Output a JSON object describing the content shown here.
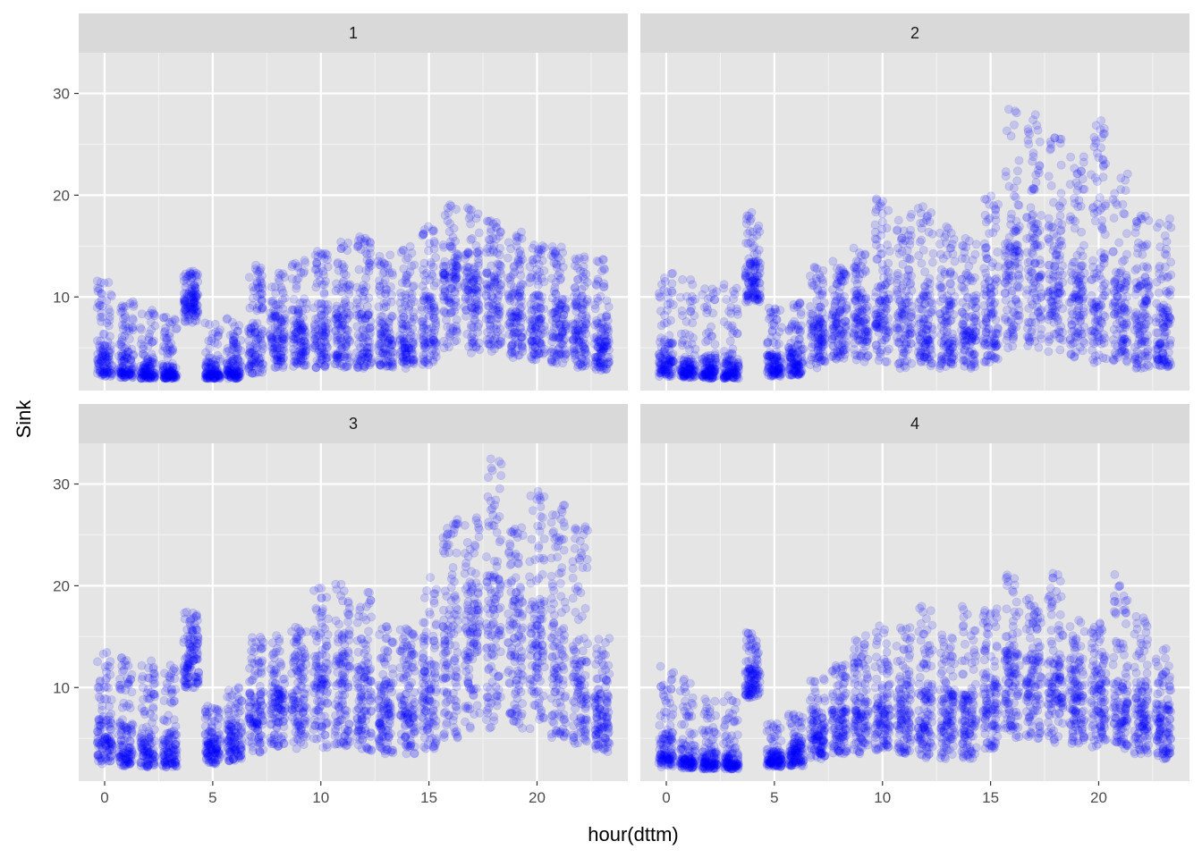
{
  "chart_data": {
    "type": "scatter",
    "layout": "facet_wrap 2x2",
    "xlabel": "hour(dttm)",
    "ylabel": "Sink",
    "xlim": [
      -1.2,
      24.2
    ],
    "ylim": [
      0.8,
      34.0
    ],
    "x_ticks": [
      0,
      5,
      10,
      15,
      20
    ],
    "y_ticks": [
      10,
      20,
      30
    ],
    "grid": true,
    "point_color": "#0000ff",
    "point_alpha": 0.14,
    "panel_background": "#e5e5e5",
    "strip_background": "#d9d9d9",
    "note": "hourly distribution summary per facet (min, lower quartile, median, upper quartile, max); x is hour of day 0-23",
    "facets": [
      {
        "label": "1",
        "hours": [
          {
            "x": 0,
            "min": 2.2,
            "q1": 2.8,
            "median": 4.0,
            "q3": 6.0,
            "max": 11.5
          },
          {
            "x": 1,
            "min": 2.1,
            "q1": 2.5,
            "median": 3.0,
            "q3": 4.5,
            "max": 9.5
          },
          {
            "x": 2,
            "min": 2.0,
            "q1": 2.3,
            "median": 2.7,
            "q3": 3.8,
            "max": 9.0
          },
          {
            "x": 3,
            "min": 2.0,
            "q1": 2.2,
            "median": 2.5,
            "q3": 3.3,
            "max": 8.0
          },
          {
            "x": 4,
            "min": 7.5,
            "q1": 8.8,
            "median": 9.6,
            "q3": 10.5,
            "max": 12.5
          },
          {
            "x": 5,
            "min": 2.0,
            "q1": 2.2,
            "median": 2.6,
            "q3": 3.5,
            "max": 7.5
          },
          {
            "x": 6,
            "min": 2.0,
            "q1": 2.3,
            "median": 2.8,
            "q3": 4.0,
            "max": 8.0
          },
          {
            "x": 7,
            "min": 2.5,
            "q1": 4.0,
            "median": 5.5,
            "q3": 7.0,
            "max": 13.0
          },
          {
            "x": 8,
            "min": 3.0,
            "q1": 5.0,
            "median": 6.5,
            "q3": 8.5,
            "max": 12.5
          },
          {
            "x": 9,
            "min": 3.0,
            "q1": 5.0,
            "median": 6.8,
            "q3": 9.0,
            "max": 13.5
          },
          {
            "x": 10,
            "min": 3.0,
            "q1": 5.0,
            "median": 7.0,
            "q3": 9.5,
            "max": 14.5
          },
          {
            "x": 11,
            "min": 3.0,
            "q1": 4.5,
            "median": 6.5,
            "q3": 9.0,
            "max": 15.5
          },
          {
            "x": 12,
            "min": 3.0,
            "q1": 4.5,
            "median": 6.5,
            "q3": 9.0,
            "max": 16.0
          },
          {
            "x": 13,
            "min": 3.0,
            "q1": 4.5,
            "median": 6.0,
            "q3": 8.5,
            "max": 14.5
          },
          {
            "x": 14,
            "min": 3.0,
            "q1": 4.5,
            "median": 6.0,
            "q3": 8.5,
            "max": 15.0
          },
          {
            "x": 15,
            "min": 3.0,
            "q1": 5.0,
            "median": 7.0,
            "q3": 10.0,
            "max": 17.0
          },
          {
            "x": 16,
            "min": 5.0,
            "q1": 9.0,
            "median": 11.5,
            "q3": 13.5,
            "max": 19.5
          },
          {
            "x": 17,
            "min": 4.5,
            "q1": 8.0,
            "median": 10.5,
            "q3": 13.0,
            "max": 19.0
          },
          {
            "x": 18,
            "min": 4.5,
            "q1": 8.0,
            "median": 10.0,
            "q3": 12.5,
            "max": 18.0
          },
          {
            "x": 19,
            "min": 4.0,
            "q1": 6.5,
            "median": 8.5,
            "q3": 11.0,
            "max": 16.0
          },
          {
            "x": 20,
            "min": 3.5,
            "q1": 6.0,
            "median": 8.0,
            "q3": 10.5,
            "max": 15.0
          },
          {
            "x": 21,
            "min": 3.5,
            "q1": 6.0,
            "median": 7.5,
            "q3": 10.0,
            "max": 15.0
          },
          {
            "x": 22,
            "min": 3.0,
            "q1": 5.5,
            "median": 7.0,
            "q3": 9.5,
            "max": 14.0
          },
          {
            "x": 23,
            "min": 2.8,
            "q1": 4.0,
            "median": 5.5,
            "q3": 7.5,
            "max": 14.0
          }
        ]
      },
      {
        "label": "2",
        "hours": [
          {
            "x": 0,
            "min": 2.2,
            "q1": 3.0,
            "median": 4.0,
            "q3": 5.5,
            "max": 12.5
          },
          {
            "x": 1,
            "min": 2.1,
            "q1": 2.6,
            "median": 3.2,
            "q3": 4.5,
            "max": 12.0
          },
          {
            "x": 2,
            "min": 2.0,
            "q1": 2.4,
            "median": 3.0,
            "q3": 4.0,
            "max": 11.0
          },
          {
            "x": 3,
            "min": 2.0,
            "q1": 2.3,
            "median": 2.8,
            "q3": 3.8,
            "max": 12.0
          },
          {
            "x": 4,
            "min": 9.5,
            "q1": 10.5,
            "median": 12.0,
            "q3": 13.5,
            "max": 18.5
          },
          {
            "x": 5,
            "min": 2.2,
            "q1": 2.8,
            "median": 3.3,
            "q3": 4.5,
            "max": 9.0
          },
          {
            "x": 6,
            "min": 2.3,
            "q1": 3.0,
            "median": 3.8,
            "q3": 5.0,
            "max": 9.5
          },
          {
            "x": 7,
            "min": 3.0,
            "q1": 5.0,
            "median": 6.5,
            "q3": 8.0,
            "max": 13.0
          },
          {
            "x": 8,
            "min": 3.5,
            "q1": 5.5,
            "median": 7.0,
            "q3": 9.0,
            "max": 13.5
          },
          {
            "x": 9,
            "min": 3.5,
            "q1": 6.0,
            "median": 8.0,
            "q3": 10.5,
            "max": 15.0
          },
          {
            "x": 10,
            "min": 3.5,
            "q1": 6.5,
            "median": 9.0,
            "q3": 11.5,
            "max": 20.0
          },
          {
            "x": 11,
            "min": 3.0,
            "q1": 6.0,
            "median": 8.5,
            "q3": 11.5,
            "max": 18.0
          },
          {
            "x": 12,
            "min": 3.0,
            "q1": 5.5,
            "median": 8.0,
            "q3": 11.0,
            "max": 19.0
          },
          {
            "x": 13,
            "min": 3.0,
            "q1": 5.0,
            "median": 7.0,
            "q3": 10.0,
            "max": 17.0
          },
          {
            "x": 14,
            "min": 3.0,
            "q1": 5.0,
            "median": 7.0,
            "q3": 10.0,
            "max": 16.0
          },
          {
            "x": 15,
            "min": 3.5,
            "q1": 6.0,
            "median": 8.5,
            "q3": 12.0,
            "max": 20.0
          },
          {
            "x": 16,
            "min": 5.0,
            "q1": 10.0,
            "median": 14.0,
            "q3": 18.0,
            "max": 29.0
          },
          {
            "x": 17,
            "min": 5.0,
            "q1": 10.0,
            "median": 14.0,
            "q3": 18.0,
            "max": 28.0
          },
          {
            "x": 18,
            "min": 4.5,
            "q1": 9.0,
            "median": 12.5,
            "q3": 16.0,
            "max": 26.0
          },
          {
            "x": 19,
            "min": 4.0,
            "q1": 8.0,
            "median": 11.0,
            "q3": 14.5,
            "max": 24.0
          },
          {
            "x": 20,
            "min": 3.5,
            "q1": 7.5,
            "median": 10.0,
            "q3": 13.5,
            "max": 27.5
          },
          {
            "x": 21,
            "min": 3.5,
            "q1": 7.0,
            "median": 9.5,
            "q3": 12.5,
            "max": 22.0
          },
          {
            "x": 22,
            "min": 3.0,
            "q1": 6.0,
            "median": 8.5,
            "q3": 11.5,
            "max": 18.0
          },
          {
            "x": 23,
            "min": 3.0,
            "q1": 4.5,
            "median": 6.5,
            "q3": 9.0,
            "max": 18.0
          }
        ]
      },
      {
        "label": "3",
        "hours": [
          {
            "x": 0,
            "min": 2.5,
            "q1": 3.8,
            "median": 5.0,
            "q3": 7.0,
            "max": 13.5
          },
          {
            "x": 1,
            "min": 2.3,
            "q1": 3.2,
            "median": 4.5,
            "q3": 6.5,
            "max": 13.0
          },
          {
            "x": 2,
            "min": 2.2,
            "q1": 3.0,
            "median": 4.0,
            "q3": 6.0,
            "max": 12.5
          },
          {
            "x": 3,
            "min": 2.2,
            "q1": 2.8,
            "median": 3.8,
            "q3": 5.5,
            "max": 12.0
          },
          {
            "x": 4,
            "min": 10.0,
            "q1": 11.5,
            "median": 12.8,
            "q3": 14.5,
            "max": 17.5
          },
          {
            "x": 5,
            "min": 2.5,
            "q1": 3.5,
            "median": 4.3,
            "q3": 5.5,
            "max": 8.0
          },
          {
            "x": 6,
            "min": 2.8,
            "q1": 3.8,
            "median": 5.0,
            "q3": 6.5,
            "max": 10.0
          },
          {
            "x": 7,
            "min": 3.5,
            "q1": 6.0,
            "median": 7.5,
            "q3": 9.5,
            "max": 15.0
          },
          {
            "x": 8,
            "min": 4.0,
            "q1": 6.5,
            "median": 8.5,
            "q3": 10.5,
            "max": 15.0
          },
          {
            "x": 9,
            "min": 4.0,
            "q1": 7.0,
            "median": 9.5,
            "q3": 12.0,
            "max": 16.0
          },
          {
            "x": 10,
            "min": 4.0,
            "q1": 8.0,
            "median": 11.0,
            "q3": 13.5,
            "max": 20.0
          },
          {
            "x": 11,
            "min": 4.0,
            "q1": 7.5,
            "median": 10.5,
            "q3": 13.5,
            "max": 20.5
          },
          {
            "x": 12,
            "min": 3.5,
            "q1": 7.0,
            "median": 9.5,
            "q3": 12.0,
            "max": 19.5
          },
          {
            "x": 13,
            "min": 3.5,
            "q1": 6.0,
            "median": 8.0,
            "q3": 10.5,
            "max": 16.0
          },
          {
            "x": 14,
            "min": 3.5,
            "q1": 6.0,
            "median": 8.0,
            "q3": 10.5,
            "max": 16.0
          },
          {
            "x": 15,
            "min": 4.0,
            "q1": 7.0,
            "median": 9.5,
            "q3": 12.5,
            "max": 21.0
          },
          {
            "x": 16,
            "min": 5.0,
            "q1": 10.5,
            "median": 15.0,
            "q3": 19.0,
            "max": 27.0
          },
          {
            "x": 17,
            "min": 6.0,
            "q1": 12.0,
            "median": 16.5,
            "q3": 20.5,
            "max": 27.0
          },
          {
            "x": 18,
            "min": 6.0,
            "q1": 12.0,
            "median": 17.0,
            "q3": 21.0,
            "max": 32.5
          },
          {
            "x": 19,
            "min": 6.0,
            "q1": 11.0,
            "median": 15.5,
            "q3": 19.5,
            "max": 26.0
          },
          {
            "x": 20,
            "min": 5.5,
            "q1": 10.5,
            "median": 14.5,
            "q3": 18.5,
            "max": 29.5
          },
          {
            "x": 21,
            "min": 5.0,
            "q1": 9.5,
            "median": 13.0,
            "q3": 17.0,
            "max": 28.5
          },
          {
            "x": 22,
            "min": 4.5,
            "q1": 8.0,
            "median": 11.0,
            "q3": 14.5,
            "max": 26.0
          },
          {
            "x": 23,
            "min": 3.5,
            "q1": 5.5,
            "median": 7.0,
            "q3": 9.5,
            "max": 15.0
          }
        ]
      },
      {
        "label": "4",
        "hours": [
          {
            "x": 0,
            "min": 2.2,
            "q1": 3.0,
            "median": 3.8,
            "q3": 5.5,
            "max": 12.0
          },
          {
            "x": 1,
            "min": 2.1,
            "q1": 2.6,
            "median": 3.0,
            "q3": 4.5,
            "max": 10.5
          },
          {
            "x": 2,
            "min": 2.0,
            "q1": 2.4,
            "median": 2.8,
            "q3": 3.8,
            "max": 9.0
          },
          {
            "x": 3,
            "min": 2.0,
            "q1": 2.3,
            "median": 2.6,
            "q3": 3.5,
            "max": 9.5
          },
          {
            "x": 4,
            "min": 9.0,
            "q1": 10.0,
            "median": 11.0,
            "q3": 12.0,
            "max": 15.5
          },
          {
            "x": 5,
            "min": 2.2,
            "q1": 2.6,
            "median": 3.0,
            "q3": 3.8,
            "max": 6.5
          },
          {
            "x": 6,
            "min": 2.3,
            "q1": 2.8,
            "median": 3.5,
            "q3": 4.5,
            "max": 7.5
          },
          {
            "x": 7,
            "min": 3.0,
            "q1": 4.5,
            "median": 5.8,
            "q3": 7.0,
            "max": 11.0
          },
          {
            "x": 8,
            "min": 3.5,
            "q1": 5.0,
            "median": 6.5,
            "q3": 8.0,
            "max": 12.5
          },
          {
            "x": 9,
            "min": 3.5,
            "q1": 5.5,
            "median": 7.0,
            "q3": 9.0,
            "max": 15.0
          },
          {
            "x": 10,
            "min": 3.5,
            "q1": 6.0,
            "median": 8.0,
            "q3": 10.5,
            "max": 16.0
          },
          {
            "x": 11,
            "min": 3.5,
            "q1": 6.0,
            "median": 8.0,
            "q3": 10.5,
            "max": 16.0
          },
          {
            "x": 12,
            "min": 3.0,
            "q1": 5.5,
            "median": 7.5,
            "q3": 10.0,
            "max": 18.5
          },
          {
            "x": 13,
            "min": 3.0,
            "q1": 5.0,
            "median": 7.0,
            "q3": 9.5,
            "max": 15.5
          },
          {
            "x": 14,
            "min": 3.0,
            "q1": 5.0,
            "median": 7.0,
            "q3": 9.5,
            "max": 18.0
          },
          {
            "x": 15,
            "min": 3.5,
            "q1": 6.0,
            "median": 8.0,
            "q3": 10.5,
            "max": 18.0
          },
          {
            "x": 16,
            "min": 5.0,
            "q1": 8.5,
            "median": 11.5,
            "q3": 14.0,
            "max": 21.0
          },
          {
            "x": 17,
            "min": 5.0,
            "q1": 8.5,
            "median": 11.0,
            "q3": 13.5,
            "max": 19.0
          },
          {
            "x": 18,
            "min": 4.5,
            "q1": 8.0,
            "median": 10.5,
            "q3": 13.0,
            "max": 21.5
          },
          {
            "x": 19,
            "min": 4.5,
            "q1": 7.5,
            "median": 9.5,
            "q3": 12.0,
            "max": 17.0
          },
          {
            "x": 20,
            "min": 4.0,
            "q1": 7.0,
            "median": 9.0,
            "q3": 11.5,
            "max": 16.5
          },
          {
            "x": 21,
            "min": 4.0,
            "q1": 6.5,
            "median": 8.5,
            "q3": 11.0,
            "max": 21.0
          },
          {
            "x": 22,
            "min": 3.5,
            "q1": 6.0,
            "median": 8.0,
            "q3": 10.5,
            "max": 17.0
          },
          {
            "x": 23,
            "min": 3.0,
            "q1": 4.0,
            "median": 6.0,
            "q3": 8.5,
            "max": 14.0
          }
        ]
      }
    ]
  }
}
